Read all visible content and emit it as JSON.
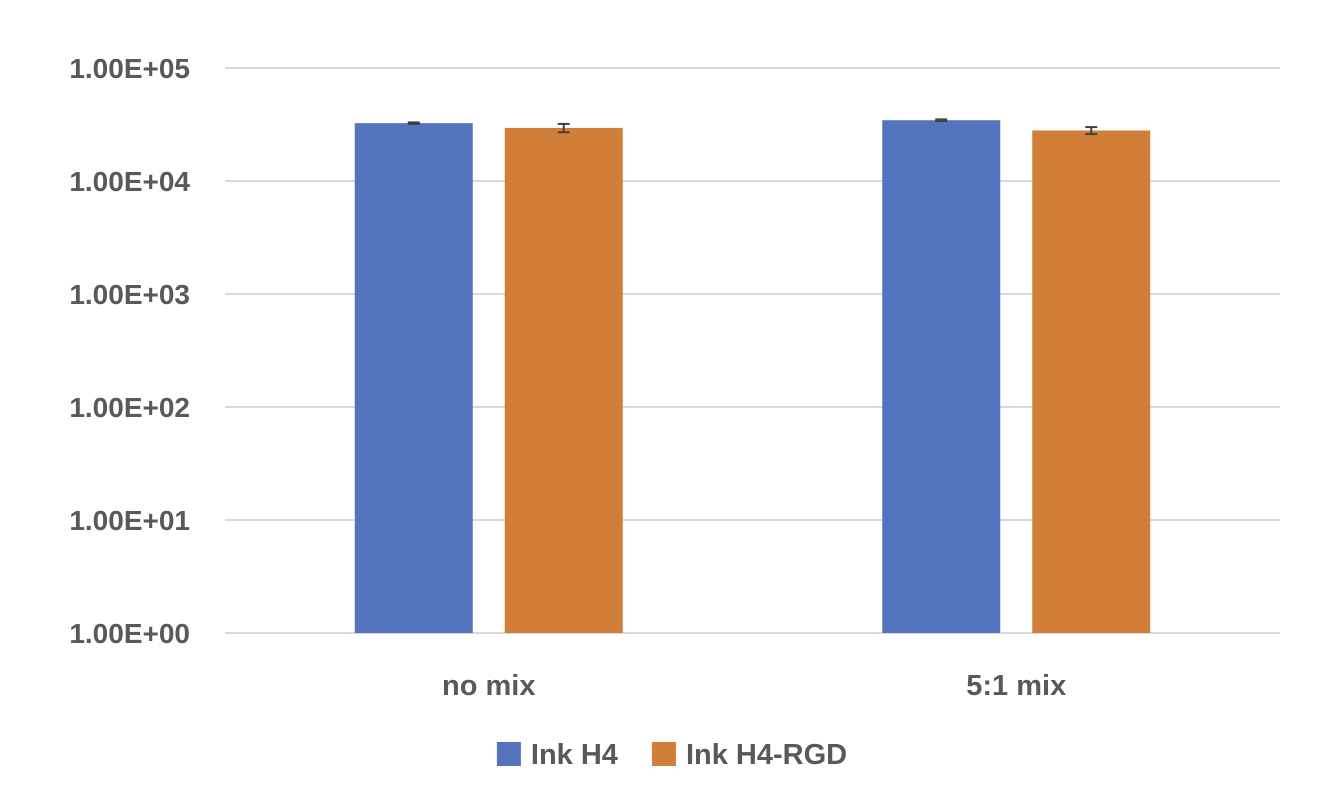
{
  "chart_data": {
    "type": "bar",
    "title": "",
    "xlabel": "",
    "ylabel": "",
    "y_scale": "log",
    "ylim": [
      1,
      100000
    ],
    "grid": true,
    "legend_placement": "bottom-center",
    "categories": [
      "no mix",
      "5:1 mix"
    ],
    "y_tick_labels": [
      "1.00E+00",
      "1.00E+01",
      "1.00E+02",
      "1.00E+03",
      "1.00E+04",
      "1.00E+05"
    ],
    "series": [
      {
        "name": "Ink H4",
        "color": "#5473BF",
        "values": [
          32500,
          34500
        ],
        "error": [
          500,
          600
        ]
      },
      {
        "name": "Ink H4-RGD",
        "color": "#D17F38",
        "values": [
          29500,
          28000
        ],
        "error": [
          2500,
          2000
        ]
      }
    ]
  }
}
